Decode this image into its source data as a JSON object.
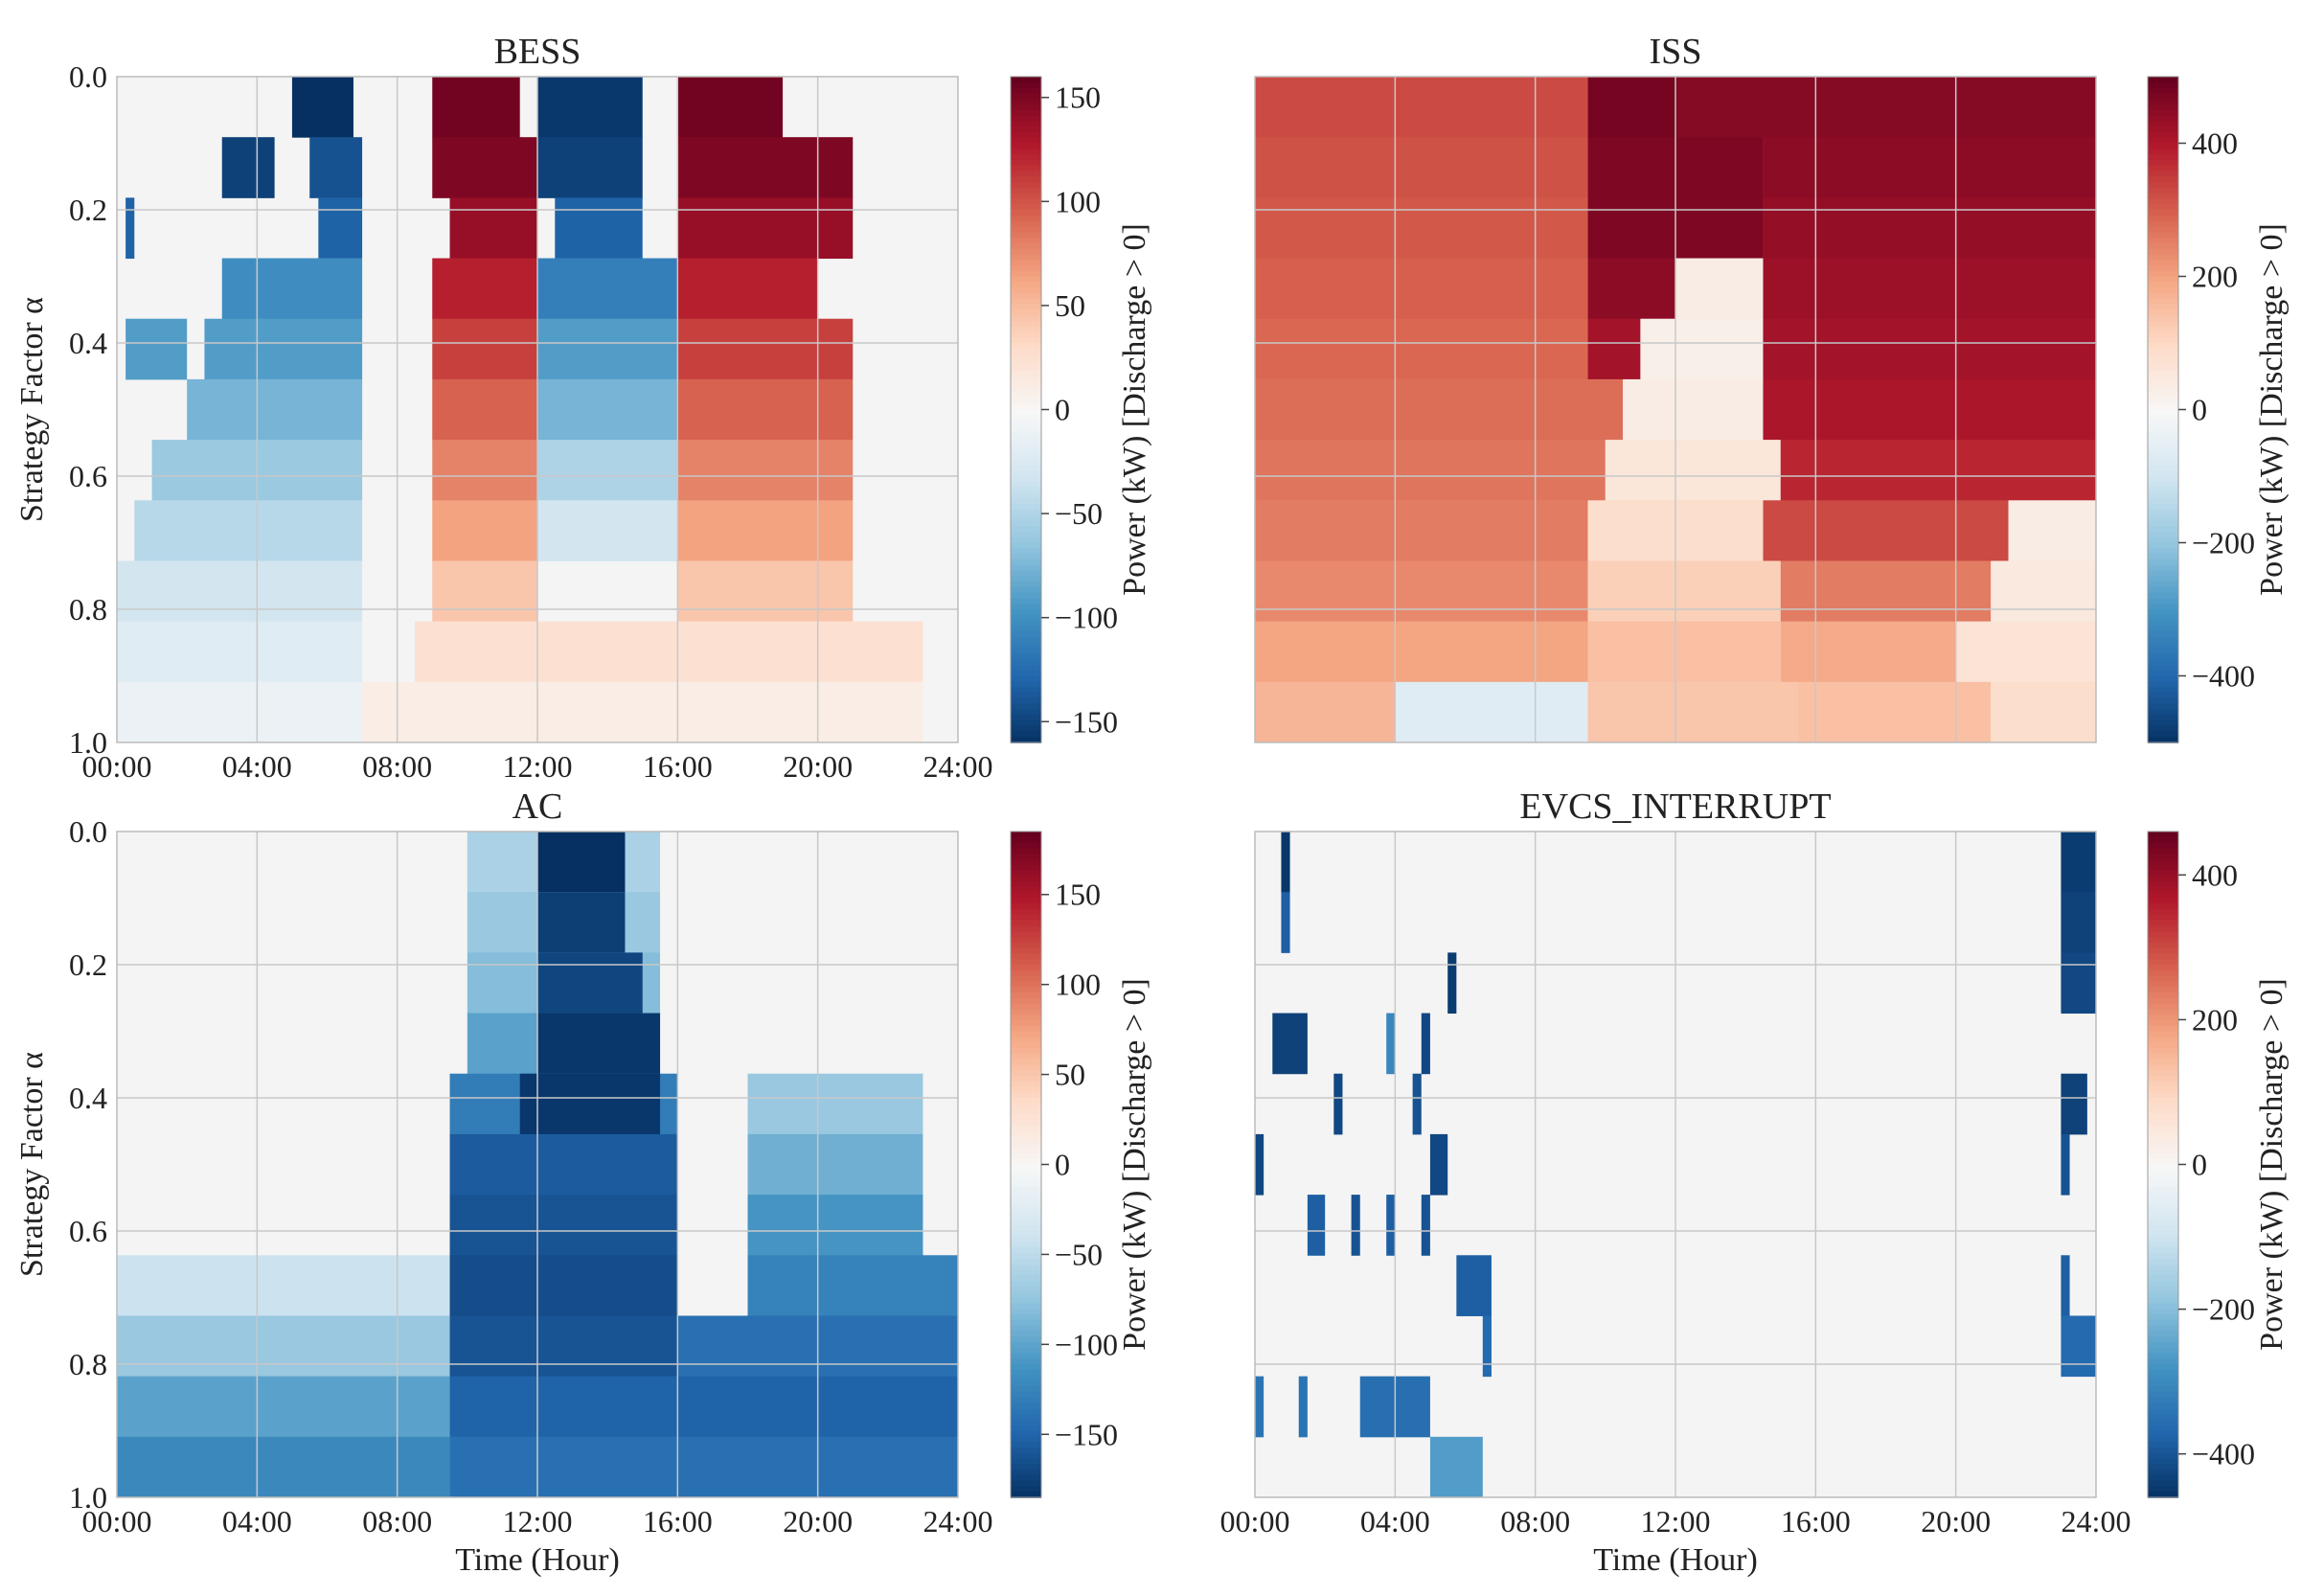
{
  "chart_data": [
    {
      "type": "heatmap",
      "title": "BESS",
      "xlabel": "",
      "ylabel": "Strategy Factor α",
      "x_ticks": [
        "00:00",
        "04:00",
        "08:00",
        "12:00",
        "16:00",
        "20:00",
        "24:00"
      ],
      "y_ticks": [
        "0.0",
        "0.2",
        "0.4",
        "0.6",
        "0.8",
        "1.0"
      ],
      "xlim_hours": [
        0,
        24
      ],
      "ylim": [
        0.0,
        1.0
      ],
      "colorbar_label": "Power (kW) [Discharge > 0]",
      "colorbar_range": [
        -160,
        160
      ],
      "colorbar_ticks": [
        "150",
        "100",
        "50",
        "0",
        "−50",
        "−100",
        "−150"
      ],
      "colorbar_tick_values": [
        150,
        100,
        50,
        0,
        -50,
        -100,
        -150
      ],
      "rows": [
        {
          "alpha": 0.0,
          "segments": [
            [
              "05:00",
              "06:45",
              -160
            ],
            [
              "09:00",
              "11:30",
              155
            ],
            [
              "12:00",
              "15:00",
              -155
            ],
            [
              "16:00",
              "19:00",
              155
            ]
          ]
        },
        {
          "alpha": 0.1,
          "segments": [
            [
              "03:00",
              "04:30",
              -150
            ],
            [
              "05:30",
              "07:00",
              -140
            ],
            [
              "09:00",
              "12:00",
              150
            ],
            [
              "12:00",
              "15:00",
              -150
            ],
            [
              "16:00",
              "21:00",
              150
            ]
          ]
        },
        {
          "alpha": 0.2,
          "segments": [
            [
              "00:15",
              "00:30",
              -130
            ],
            [
              "05:45",
              "07:00",
              -130
            ],
            [
              "09:30",
              "12:00",
              140
            ],
            [
              "12:30",
              "15:00",
              -130
            ],
            [
              "16:00",
              "21:00",
              140
            ]
          ]
        },
        {
          "alpha": 0.3,
          "segments": [
            [
              "03:00",
              "07:00",
              -100
            ],
            [
              "09:00",
              "12:00",
              125
            ],
            [
              "12:00",
              "16:00",
              -110
            ],
            [
              "16:00",
              "20:00",
              125
            ]
          ]
        },
        {
          "alpha": 0.4,
          "segments": [
            [
              "00:15",
              "02:00",
              -90
            ],
            [
              "02:30",
              "07:00",
              -90
            ],
            [
              "09:00",
              "12:00",
              110
            ],
            [
              "12:00",
              "16:00",
              -90
            ],
            [
              "16:00",
              "21:00",
              110
            ]
          ]
        },
        {
          "alpha": 0.5,
          "segments": [
            [
              "02:00",
              "07:00",
              -75
            ],
            [
              "09:00",
              "12:00",
              95
            ],
            [
              "12:00",
              "16:00",
              -75
            ],
            [
              "16:00",
              "21:00",
              95
            ]
          ]
        },
        {
          "alpha": 0.6,
          "segments": [
            [
              "01:00",
              "07:00",
              -60
            ],
            [
              "09:00",
              "12:00",
              80
            ],
            [
              "12:00",
              "16:00",
              -50
            ],
            [
              "16:00",
              "21:00",
              80
            ]
          ]
        },
        {
          "alpha": 0.7,
          "segments": [
            [
              "00:30",
              "07:00",
              -45
            ],
            [
              "09:00",
              "12:00",
              65
            ],
            [
              "12:00",
              "16:00",
              -30
            ],
            [
              "16:00",
              "21:00",
              65
            ]
          ]
        },
        {
          "alpha": 0.8,
          "segments": [
            [
              "00:00",
              "07:00",
              -30
            ],
            [
              "09:00",
              "12:00",
              45
            ],
            [
              "16:00",
              "21:00",
              45
            ]
          ]
        },
        {
          "alpha": 0.9,
          "segments": [
            [
              "00:00",
              "07:00",
              -20
            ],
            [
              "08:30",
              "23:00",
              25
            ]
          ]
        },
        {
          "alpha": 1.0,
          "segments": [
            [
              "00:00",
              "07:00",
              -10
            ],
            [
              "07:00",
              "23:00",
              12
            ]
          ]
        }
      ]
    },
    {
      "type": "heatmap",
      "title": "ISS",
      "xlabel": "",
      "ylabel": "",
      "x_ticks": [],
      "y_ticks": [],
      "xlim_hours": [
        0,
        24
      ],
      "ylim": [
        0.0,
        1.0
      ],
      "colorbar_label": "Power (kW) [Discharge > 0]",
      "colorbar_range": [
        -500,
        500
      ],
      "colorbar_ticks": [
        "400",
        "200",
        "0",
        "−200",
        "−400"
      ],
      "colorbar_tick_values": [
        400,
        200,
        0,
        -200,
        -400
      ],
      "rows": [
        {
          "alpha": 0.0,
          "segments": [
            [
              "00:00",
              "09:30",
              330
            ],
            [
              "09:30",
              "12:00",
              480
            ],
            [
              "12:00",
              "24:00",
              460
            ]
          ]
        },
        {
          "alpha": 0.1,
          "segments": [
            [
              "00:00",
              "09:30",
              320
            ],
            [
              "09:30",
              "14:30",
              470
            ],
            [
              "14:30",
              "24:00",
              450
            ]
          ]
        },
        {
          "alpha": 0.2,
          "segments": [
            [
              "00:00",
              "09:30",
              310
            ],
            [
              "09:30",
              "14:30",
              470
            ],
            [
              "14:30",
              "24:00",
              440
            ]
          ]
        },
        {
          "alpha": 0.3,
          "segments": [
            [
              "00:00",
              "09:30",
              300
            ],
            [
              "09:30",
              "12:00",
              450
            ],
            [
              "12:00",
              "14:30",
              40
            ],
            [
              "14:30",
              "24:00",
              430
            ]
          ]
        },
        {
          "alpha": 0.4,
          "segments": [
            [
              "00:00",
              "09:30",
              290
            ],
            [
              "09:30",
              "11:00",
              420
            ],
            [
              "11:00",
              "14:30",
              30
            ],
            [
              "14:30",
              "24:00",
              420
            ]
          ]
        },
        {
          "alpha": 0.5,
          "segments": [
            [
              "00:00",
              "10:30",
              280
            ],
            [
              "10:30",
              "14:30",
              40
            ],
            [
              "14:30",
              "24:00",
              410
            ]
          ]
        },
        {
          "alpha": 0.6,
          "segments": [
            [
              "00:00",
              "10:00",
              270
            ],
            [
              "10:00",
              "15:00",
              60
            ],
            [
              "15:00",
              "24:00",
              380
            ]
          ]
        },
        {
          "alpha": 0.7,
          "segments": [
            [
              "00:00",
              "09:30",
              260
            ],
            [
              "09:30",
              "14:30",
              90
            ],
            [
              "14:30",
              "21:30",
              330
            ],
            [
              "21:30",
              "24:00",
              40
            ]
          ]
        },
        {
          "alpha": 0.8,
          "segments": [
            [
              "00:00",
              "09:30",
              240
            ],
            [
              "09:30",
              "15:00",
              120
            ],
            [
              "15:00",
              "21:00",
              260
            ],
            [
              "21:00",
              "24:00",
              50
            ]
          ]
        },
        {
          "alpha": 0.9,
          "segments": [
            [
              "00:00",
              "09:30",
              200
            ],
            [
              "09:30",
              "15:00",
              150
            ],
            [
              "15:00",
              "20:00",
              190
            ],
            [
              "20:00",
              "24:00",
              70
            ]
          ]
        },
        {
          "alpha": 1.0,
          "segments": [
            [
              "00:00",
              "04:00",
              170
            ],
            [
              "04:00",
              "09:30",
              -60
            ],
            [
              "09:30",
              "15:30",
              140
            ],
            [
              "15:30",
              "21:00",
              150
            ],
            [
              "21:00",
              "24:00",
              90
            ]
          ]
        }
      ]
    },
    {
      "type": "heatmap",
      "title": "AC",
      "xlabel": "Time (Hour)",
      "ylabel": "Strategy Factor α",
      "x_ticks": [
        "00:00",
        "04:00",
        "08:00",
        "12:00",
        "16:00",
        "20:00",
        "24:00"
      ],
      "y_ticks": [
        "0.0",
        "0.2",
        "0.4",
        "0.6",
        "0.8",
        "1.0"
      ],
      "xlim_hours": [
        0,
        24
      ],
      "ylim": [
        0.0,
        1.0
      ],
      "colorbar_label": "Power (kW) [Discharge > 0]",
      "colorbar_range": [
        -185,
        185
      ],
      "colorbar_ticks": [
        "150",
        "100",
        "50",
        "0",
        "−50",
        "−100",
        "−150"
      ],
      "colorbar_tick_values": [
        150,
        100,
        50,
        0,
        -50,
        -100,
        -150
      ],
      "rows": [
        {
          "alpha": 0.0,
          "segments": [
            [
              "10:00",
              "15:30",
              -60
            ],
            [
              "12:00",
              "14:30",
              -185
            ]
          ]
        },
        {
          "alpha": 0.1,
          "segments": [
            [
              "10:00",
              "15:30",
              -70
            ],
            [
              "12:00",
              "14:30",
              -175
            ]
          ]
        },
        {
          "alpha": 0.2,
          "segments": [
            [
              "10:00",
              "15:30",
              -80
            ],
            [
              "12:00",
              "15:00",
              -170
            ]
          ]
        },
        {
          "alpha": 0.3,
          "segments": [
            [
              "10:00",
              "15:30",
              -100
            ],
            [
              "12:00",
              "15:30",
              -180
            ]
          ]
        },
        {
          "alpha": 0.4,
          "segments": [
            [
              "09:30",
              "16:00",
              -130
            ],
            [
              "11:30",
              "15:30",
              -180
            ],
            [
              "18:00",
              "23:00",
              -70
            ]
          ]
        },
        {
          "alpha": 0.5,
          "segments": [
            [
              "09:30",
              "16:00",
              -155
            ],
            [
              "18:00",
              "23:00",
              -90
            ]
          ]
        },
        {
          "alpha": 0.6,
          "segments": [
            [
              "09:30",
              "16:00",
              -160
            ],
            [
              "18:00",
              "23:00",
              -110
            ]
          ]
        },
        {
          "alpha": 0.7,
          "segments": [
            [
              "00:00",
              "09:30",
              -40
            ],
            [
              "09:30",
              "16:00",
              -165
            ],
            [
              "18:00",
              "24:00",
              -125
            ]
          ]
        },
        {
          "alpha": 0.8,
          "segments": [
            [
              "00:00",
              "09:30",
              -70
            ],
            [
              "09:30",
              "16:00",
              -160
            ],
            [
              "16:00",
              "24:00",
              -140
            ]
          ]
        },
        {
          "alpha": 0.9,
          "segments": [
            [
              "00:00",
              "09:30",
              -100
            ],
            [
              "09:30",
              "16:00",
              -150
            ],
            [
              "16:00",
              "24:00",
              -150
            ]
          ]
        },
        {
          "alpha": 1.0,
          "segments": [
            [
              "00:00",
              "09:30",
              -120
            ],
            [
              "09:30",
              "16:00",
              -140
            ],
            [
              "16:00",
              "24:00",
              -140
            ]
          ]
        }
      ]
    },
    {
      "type": "heatmap",
      "title": "EVCS_INTERRUPT",
      "xlabel": "Time (Hour)",
      "ylabel": "",
      "x_ticks": [
        "00:00",
        "04:00",
        "08:00",
        "12:00",
        "16:00",
        "20:00",
        "24:00"
      ],
      "y_ticks": [],
      "xlim_hours": [
        0,
        24
      ],
      "ylim": [
        0.0,
        1.0
      ],
      "colorbar_label": "Power (kW) [Discharge > 0]",
      "colorbar_range": [
        -460,
        460
      ],
      "colorbar_ticks": [
        "400",
        "200",
        "0",
        "−200",
        "−400"
      ],
      "colorbar_tick_values": [
        400,
        200,
        0,
        -200,
        -400
      ],
      "rows": [
        {
          "alpha": 0.0,
          "segments": [
            [
              "00:45",
              "01:00",
              -450
            ],
            [
              "23:00",
              "24:00",
              -440
            ]
          ]
        },
        {
          "alpha": 0.1,
          "segments": [
            [
              "00:45",
              "01:00",
              -380
            ],
            [
              "23:00",
              "24:00",
              -430
            ]
          ]
        },
        {
          "alpha": 0.2,
          "segments": [
            [
              "05:30",
              "05:45",
              -440
            ],
            [
              "23:00",
              "24:00",
              -420
            ]
          ]
        },
        {
          "alpha": 0.3,
          "segments": [
            [
              "00:30",
              "01:30",
              -430
            ],
            [
              "03:45",
              "04:00",
              -300
            ],
            [
              "04:45",
              "05:00",
              -420
            ]
          ]
        },
        {
          "alpha": 0.4,
          "segments": [
            [
              "02:15",
              "02:30",
              -420
            ],
            [
              "04:30",
              "04:45",
              -400
            ],
            [
              "23:00",
              "23:45",
              -430
            ]
          ]
        },
        {
          "alpha": 0.5,
          "segments": [
            [
              "00:00",
              "00:15",
              -420
            ],
            [
              "05:00",
              "05:30",
              -420
            ],
            [
              "23:00",
              "23:15",
              -400
            ]
          ]
        },
        {
          "alpha": 0.6,
          "segments": [
            [
              "01:30",
              "02:00",
              -380
            ],
            [
              "02:45",
              "03:00",
              -400
            ],
            [
              "03:45",
              "04:00",
              -380
            ],
            [
              "04:45",
              "05:00",
              -400
            ]
          ]
        },
        {
          "alpha": 0.7,
          "segments": [
            [
              "05:45",
              "06:45",
              -380
            ],
            [
              "23:00",
              "23:15",
              -380
            ]
          ]
        },
        {
          "alpha": 0.8,
          "segments": [
            [
              "06:30",
              "06:45",
              -360
            ],
            [
              "23:00",
              "24:00",
              -360
            ]
          ]
        },
        {
          "alpha": 0.9,
          "segments": [
            [
              "00:00",
              "00:15",
              -340
            ],
            [
              "01:15",
              "01:30",
              -340
            ],
            [
              "03:00",
              "05:00",
              -350
            ]
          ]
        },
        {
          "alpha": 1.0,
          "segments": [
            [
              "05:00",
              "06:30",
              -260
            ]
          ]
        }
      ]
    }
  ]
}
